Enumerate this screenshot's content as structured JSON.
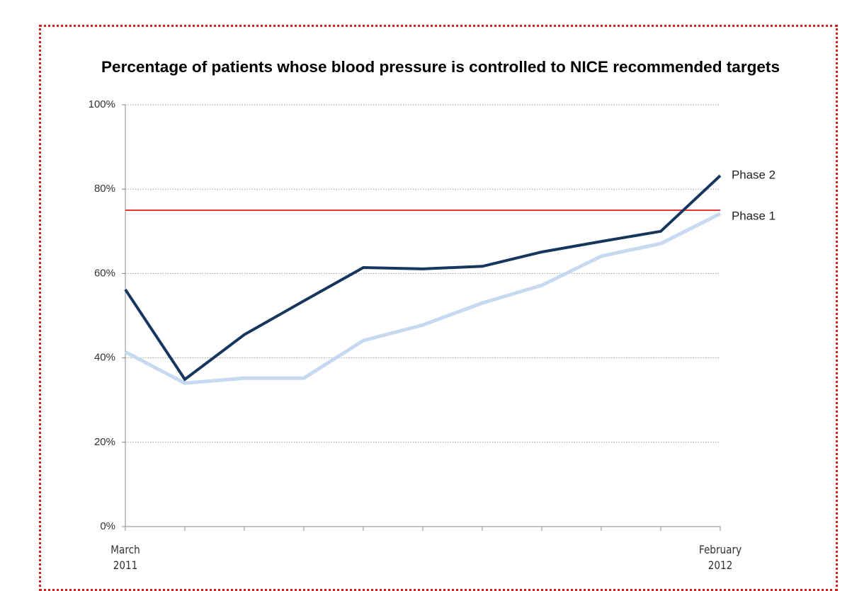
{
  "chart_data": {
    "type": "line",
    "title": "Percentage of patients whose blood pressure is controlled to NICE recommended targets",
    "categories": [
      "March 2011",
      null,
      null,
      null,
      null,
      null,
      null,
      null,
      null,
      null,
      "February 2012"
    ],
    "series": [
      {
        "name": "Phase 2",
        "color": "#17365d",
        "values": [
          56.2,
          34.9,
          45.5,
          53.5,
          61.4,
          61.1,
          61.7,
          65.1,
          67.6,
          70.0,
          83.2
        ]
      },
      {
        "name": "Phase 1",
        "color": "#c6d9f1",
        "values": [
          41.4,
          34.0,
          35.2,
          35.2,
          44.1,
          47.8,
          53.0,
          57.2,
          64.1,
          67.1,
          74.2
        ]
      }
    ],
    "target": 75,
    "target_color": "#ee3333",
    "ylim": [
      0,
      100
    ],
    "yticks": [
      {
        "value": 0,
        "label": "0%"
      },
      {
        "value": 20,
        "label": "20%"
      },
      {
        "value": 40,
        "label": "40%"
      },
      {
        "value": 60,
        "label": "60%"
      },
      {
        "value": 80,
        "label": "80%"
      },
      {
        "value": 100,
        "label": "100%"
      }
    ],
    "grid": true
  }
}
